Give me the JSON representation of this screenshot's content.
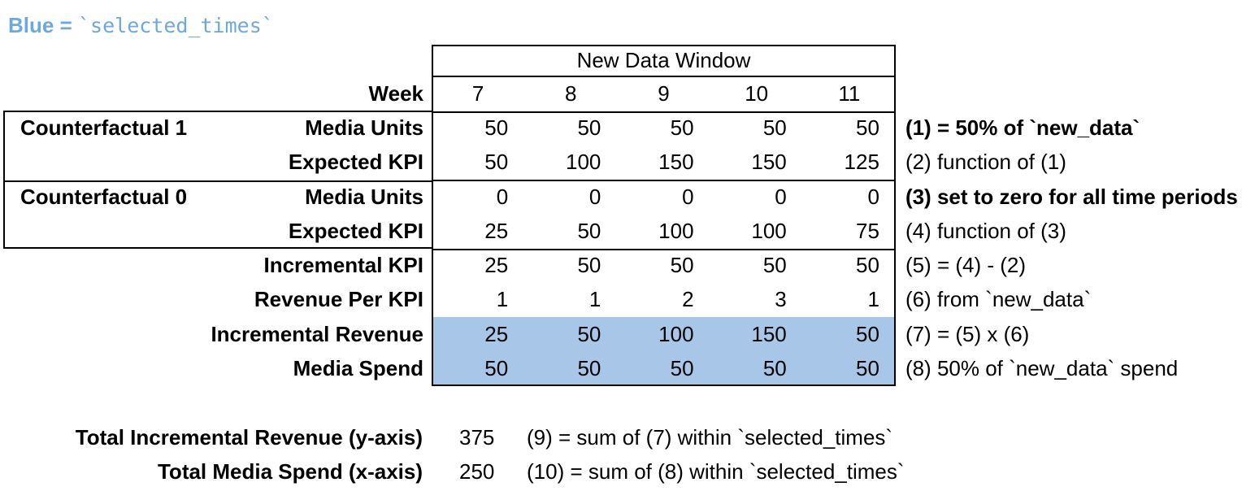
{
  "legend": {
    "prefix": "Blue = ",
    "code": "`selected_times`"
  },
  "colors": {
    "highlight_blue": "#a7c6e8",
    "legend_text_blue": "#6fa8dc",
    "border": "#000000"
  },
  "table": {
    "window_title": "New Data Window",
    "week_label": "Week",
    "weeks": [
      "7",
      "8",
      "9",
      "10",
      "11"
    ],
    "rows": [
      {
        "group": "Counterfactual 1",
        "label": "Media Units",
        "values": [
          "50",
          "50",
          "50",
          "50",
          "50"
        ],
        "note": "(1) = 50% of `new_data`"
      },
      {
        "group": "",
        "label": "Expected KPI",
        "values": [
          "50",
          "100",
          "150",
          "150",
          "125"
        ],
        "note": "(2) function of (1)"
      },
      {
        "group": "Counterfactual 0",
        "label": "Media Units",
        "values": [
          "0",
          "0",
          "0",
          "0",
          "0"
        ],
        "note": "(3) set to zero for all time periods"
      },
      {
        "group": "",
        "label": "Expected KPI",
        "values": [
          "25",
          "50",
          "100",
          "100",
          "75"
        ],
        "note": "(4) function of (3)"
      },
      {
        "group": "",
        "label": "Incremental KPI",
        "values": [
          "25",
          "50",
          "50",
          "50",
          "50"
        ],
        "note": "(5) = (4) - (2)"
      },
      {
        "group": "",
        "label": "Revenue Per KPI",
        "values": [
          "1",
          "1",
          "2",
          "3",
          "1"
        ],
        "note": "(6) from `new_data`"
      },
      {
        "group": "",
        "label": "Incremental Revenue",
        "values": [
          "25",
          "50",
          "100",
          "150",
          "50"
        ],
        "note": "(7) = (5) x (6)"
      },
      {
        "group": "",
        "label": "Media Spend",
        "values": [
          "50",
          "50",
          "50",
          "50",
          "50"
        ],
        "note": "(8) 50% of `new_data` spend"
      }
    ]
  },
  "summary": [
    {
      "label": "Total Incremental Revenue (y-axis)",
      "value": "375",
      "note": "(9) = sum of (7) within `selected_times`"
    },
    {
      "label": "Total Media Spend (x-axis)",
      "value": "250",
      "note": "(10) = sum of (8) within `selected_times`"
    }
  ]
}
